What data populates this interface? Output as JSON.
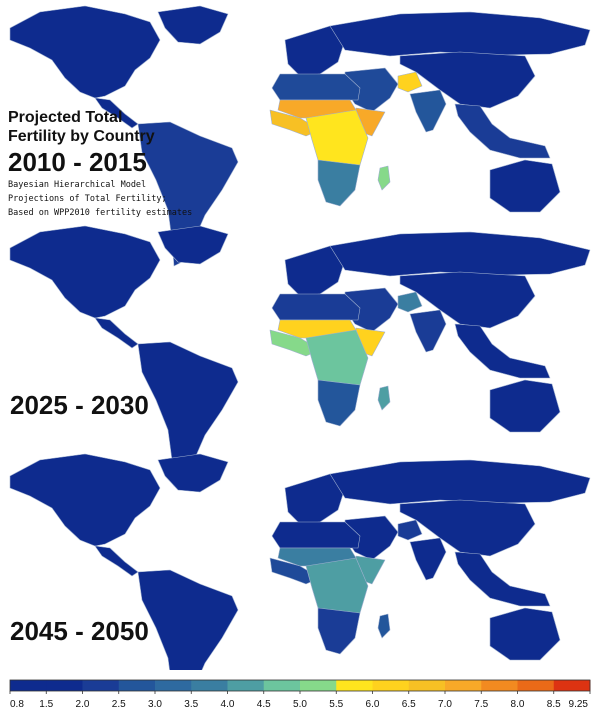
{
  "title": {
    "line1": "Projected Total",
    "line2": "Fertility by Country",
    "period": "2010 - 2015",
    "note1": "Bayesian Hierarchical Model",
    "note2": "Projections of Total Fertility;",
    "note3": "Based on WPP2010 fertility estimates"
  },
  "panels": [
    {
      "period": "2010 - 2015",
      "show_label": false,
      "fills": {
        "na": "#0e2b8e",
        "greenland": "#0e2b8e",
        "ca": "#0e2b8e",
        "sa": "#1a3c96",
        "eu": "#0e2b8e",
        "ru": "#0e2b8e",
        "me": "#1f4a99",
        "afg": "#ffd21e",
        "ind": "#23569b",
        "cn": "#0e2b8e",
        "sea": "#1a3c96",
        "au": "#0e2b8e",
        "mad": "#86d98a",
        "af_n": "#1f4a99",
        "af_sahel": "#f8a928",
        "af_west": "#f7c024",
        "af_horn": "#f8a928",
        "af_cent": "#ffe51e",
        "af_south": "#3a7ea1"
      }
    },
    {
      "period": "2025 - 2030",
      "show_label": true,
      "fills": {
        "na": "#0e2b8e",
        "greenland": "#0e2b8e",
        "ca": "#0e2b8e",
        "sa": "#0e2b8e",
        "eu": "#0e2b8e",
        "ru": "#0e2b8e",
        "me": "#1a3c96",
        "afg": "#3a7ea1",
        "ind": "#1a3c96",
        "cn": "#0e2b8e",
        "sea": "#0e2b8e",
        "au": "#0e2b8e",
        "mad": "#4e9ea3",
        "af_n": "#1a3c96",
        "af_sahel": "#ffd21e",
        "af_west": "#86d98a",
        "af_horn": "#ffd21e",
        "af_cent": "#6cc59e",
        "af_south": "#23569b"
      }
    },
    {
      "period": "2045 - 2050",
      "show_label": true,
      "fills": {
        "na": "#0e2b8e",
        "greenland": "#0e2b8e",
        "ca": "#0e2b8e",
        "sa": "#0e2b8e",
        "eu": "#0e2b8e",
        "ru": "#0e2b8e",
        "me": "#0e2b8e",
        "afg": "#1a3c96",
        "ind": "#0e2b8e",
        "cn": "#0e2b8e",
        "sea": "#0e2b8e",
        "au": "#0e2b8e",
        "mad": "#23569b",
        "af_n": "#0e2b8e",
        "af_sahel": "#3a7ea1",
        "af_west": "#1f4a99",
        "af_horn": "#4e9ea3",
        "af_cent": "#4e9ea3",
        "af_south": "#1a3c96"
      }
    }
  ],
  "legend": {
    "ticks": [
      "0.8",
      "1.5",
      "2.0",
      "2.5",
      "3.0",
      "3.5",
      "4.0",
      "4.5",
      "5.0",
      "5.5",
      "6.0",
      "6.5",
      "7.0",
      "7.5",
      "8.0",
      "8.5",
      "9.25"
    ],
    "colors": [
      "#0e2b8e",
      "#0e2b8e",
      "#1a3c96",
      "#23569b",
      "#2e6aa0",
      "#3a7ea1",
      "#4e9ea3",
      "#6cc59e",
      "#86d98a",
      "#ffe51e",
      "#ffd21e",
      "#f7c024",
      "#f8a928",
      "#f28a20",
      "#ea6a18",
      "#dd3312"
    ]
  }
}
